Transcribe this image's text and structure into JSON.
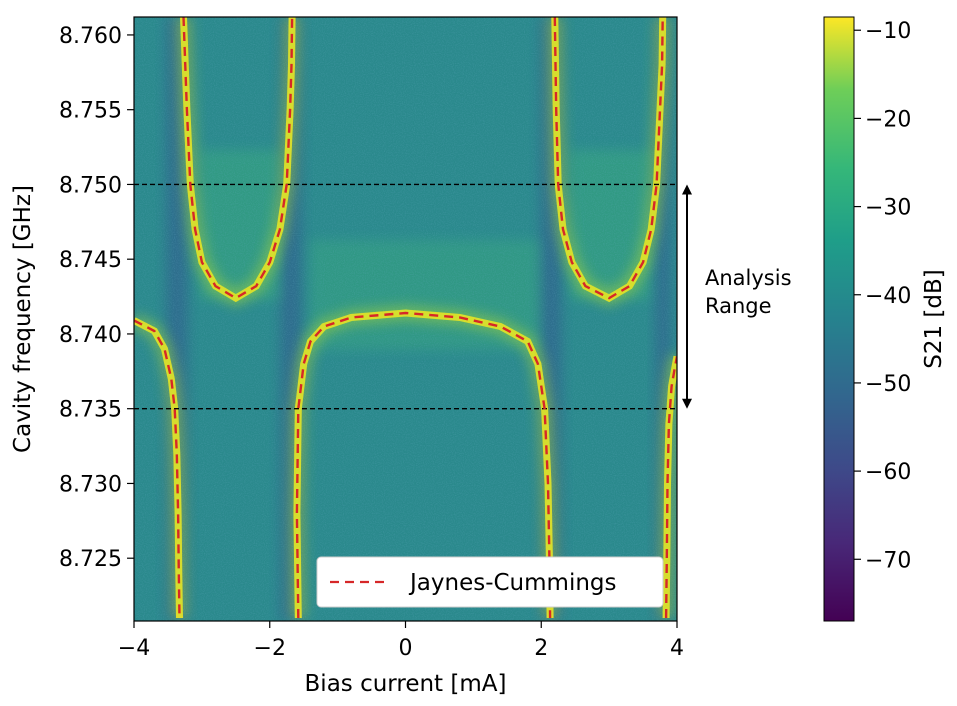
{
  "chart_data": {
    "type": "heatmap",
    "xlabel": "Bias current [mA]",
    "ylabel": "Cavity frequency [GHz]",
    "xlim": [
      -4,
      4
    ],
    "ylim": [
      8.7208,
      8.7612
    ],
    "x_ticks": [
      -4,
      -2,
      0,
      2,
      4
    ],
    "x_tick_labels": [
      "−4",
      "−2",
      "0",
      "2",
      "4"
    ],
    "y_ticks": [
      8.725,
      8.73,
      8.735,
      8.74,
      8.745,
      8.75,
      8.755,
      8.76
    ],
    "y_tick_labels": [
      "8.725",
      "8.730",
      "8.735",
      "8.740",
      "8.745",
      "8.750",
      "8.755",
      "8.760"
    ],
    "colorbar": {
      "label": "S21 [dB]",
      "range": [
        -77,
        -8.5
      ],
      "ticks": [
        -70,
        -60,
        -50,
        -40,
        -30,
        -20,
        -10
      ],
      "tick_labels": [
        "−70",
        "−60",
        "−50",
        "−40",
        "−30",
        "−20",
        "−10"
      ],
      "colormap": "viridis"
    },
    "series": [
      {
        "name": "Jaynes-Cummings",
        "style": "dashed",
        "color": "#d62728",
        "branches": [
          {
            "x": [
              -4.0,
              -3.7,
              -3.55,
              -3.45,
              -3.4,
              -3.37,
              -3.35,
              -3.34,
              -3.33
            ],
            "y": [
              8.7409,
              8.7402,
              8.739,
              8.737,
              8.735,
              8.732,
              8.728,
              8.724,
              8.721
            ]
          },
          {
            "x": [
              -3.27,
              -3.22,
              -3.17,
              -3.1,
              -3.0,
              -2.8,
              -2.5,
              -2.2,
              -2.0,
              -1.85,
              -1.75,
              -1.7,
              -1.68,
              -1.67
            ],
            "y": [
              8.7612,
              8.755,
              8.75,
              8.747,
              8.7448,
              8.7432,
              8.7424,
              8.7432,
              8.7448,
              8.747,
              8.75,
              8.755,
              8.758,
              8.7612
            ]
          },
          {
            "x": [
              -1.58,
              -1.6,
              -1.58,
              -1.5,
              -1.4,
              -1.2,
              -0.8,
              0.0,
              0.8,
              1.4,
              1.8,
              1.95,
              2.05,
              2.1,
              2.12,
              2.13
            ],
            "y": [
              8.721,
              8.728,
              8.735,
              8.738,
              8.7395,
              8.7405,
              8.7411,
              8.7414,
              8.7411,
              8.7405,
              8.7395,
              8.738,
              8.735,
              8.73,
              8.725,
              8.721
            ]
          },
          {
            "x": [
              2.2,
              2.22,
              2.25,
              2.32,
              2.45,
              2.65,
              3.0,
              3.3,
              3.5,
              3.62,
              3.7,
              3.75,
              3.78,
              3.79
            ],
            "y": [
              8.7612,
              8.755,
              8.75,
              8.747,
              8.7448,
              8.7432,
              8.7424,
              8.7432,
              8.7448,
              8.747,
              8.75,
              8.755,
              8.758,
              8.7612
            ]
          },
          {
            "x": [
              3.84,
              3.85,
              3.86,
              3.88,
              3.92,
              3.97,
              4.0
            ],
            "y": [
              8.721,
              8.725,
              8.73,
              8.734,
              8.7365,
              8.7378,
              8.7385
            ]
          }
        ]
      }
    ],
    "hlines": [
      8.75,
      8.735
    ],
    "legend": {
      "label": "Jaynes-Cummings",
      "location": "lower-right"
    },
    "annotation": {
      "text_line1": "Analysis",
      "text_line2": "Range",
      "y_from": 8.75,
      "y_to": 8.735
    }
  }
}
